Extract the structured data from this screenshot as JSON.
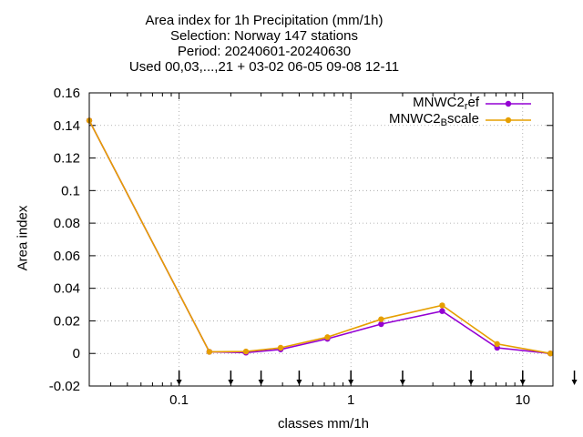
{
  "title_lines": [
    "Area index  for 1h Precipitation (mm/1h)",
    "Selection: Norway    147 stations",
    "Period: 20240601-20240630",
    "Used 00,03,...,21 + 03-02 06-05 09-08 12-11"
  ],
  "chart_data": {
    "type": "line",
    "xlabel": "classes mm/1h",
    "ylabel": "Area index",
    "xscale": "log",
    "xlim": [
      0.03,
      15
    ],
    "ylim": [
      -0.02,
      0.16
    ],
    "xticks": [
      {
        "value": 0.1,
        "label": "0.1"
      },
      {
        "value": 1,
        "label": "1"
      },
      {
        "value": 10,
        "label": "10"
      }
    ],
    "yticks": [
      {
        "value": -0.02,
        "label": "-0.02"
      },
      {
        "value": 0,
        "label": "0"
      },
      {
        "value": 0.02,
        "label": "0.02"
      },
      {
        "value": 0.04,
        "label": "0.04"
      },
      {
        "value": 0.06,
        "label": "0.06"
      },
      {
        "value": 0.08,
        "label": "0.08"
      },
      {
        "value": 0.1,
        "label": "0.1"
      },
      {
        "value": 0.12,
        "label": "0.12"
      },
      {
        "value": 0.14,
        "label": "0.14"
      },
      {
        "value": 0.16,
        "label": "0.16"
      }
    ],
    "grid": true,
    "legend_position": "top-right",
    "class_boundary_arrows": [
      0.1,
      0.2,
      0.3,
      0.5,
      1,
      2,
      5,
      10,
      20
    ],
    "series": [
      {
        "name": "MNWC2_ref",
        "legend_main": "MNWC2",
        "legend_sub": "r",
        "legend_tail": "ef",
        "color": "#9400d3",
        "x": [
          0.03,
          0.15,
          0.245,
          0.39,
          0.73,
          1.5,
          3.4,
          7.1,
          14.5
        ],
        "y": [
          0.143,
          0.001,
          0.0005,
          0.0025,
          0.009,
          0.018,
          0.026,
          0.0035,
          0.0
        ]
      },
      {
        "name": "MNWC2_Bscale",
        "legend_main": "MNWC2",
        "legend_sub": "B",
        "legend_tail": "scale",
        "color": "#e69f00",
        "x": [
          0.03,
          0.15,
          0.245,
          0.39,
          0.73,
          1.5,
          3.4,
          7.1,
          14.5
        ],
        "y": [
          0.143,
          0.001,
          0.0012,
          0.0035,
          0.01,
          0.021,
          0.0295,
          0.0058,
          0.0
        ]
      }
    ]
  }
}
